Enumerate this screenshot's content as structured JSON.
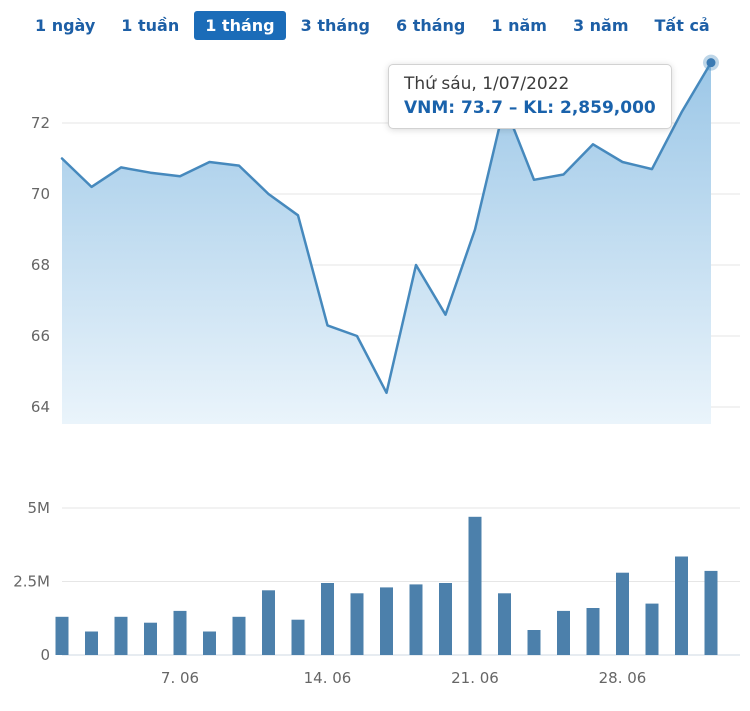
{
  "tabs": {
    "items": [
      {
        "label": "1 ngày",
        "active": false
      },
      {
        "label": "1 tuần",
        "active": false
      },
      {
        "label": "1 tháng",
        "active": true
      },
      {
        "label": "3 tháng",
        "active": false
      },
      {
        "label": "6 tháng",
        "active": false
      },
      {
        "label": "1 năm",
        "active": false
      },
      {
        "label": "3 năm",
        "active": false
      },
      {
        "label": "Tất cả",
        "active": false
      }
    ]
  },
  "tooltip": {
    "date": "Thứ sáu, 1/07/2022",
    "value": "VNM: 73.7 – KL: 2,859,000"
  },
  "colors": {
    "accent_blue": "#1d5fa6",
    "tab_active_bg": "#1b6cb8",
    "line": "#4689bd",
    "marker": "#3a7ab3",
    "area_top": "#9cc7e7",
    "area_bottom": "#eaf4fb",
    "bars": "#4c80ab",
    "grid": "#e6e6e6",
    "axis_text": "#666666",
    "baseline": "#cfd8e3"
  },
  "chart_data": [
    {
      "type": "area",
      "series": [
        {
          "name": "VNM",
          "values": [
            71.0,
            70.2,
            70.75,
            70.6,
            70.5,
            70.9,
            70.8,
            70.0,
            69.4,
            66.3,
            66.0,
            64.4,
            68.0,
            66.6,
            69.0,
            72.5,
            70.4,
            70.55,
            71.4,
            70.9,
            70.7,
            72.3,
            73.7
          ]
        }
      ],
      "last_point": {
        "label": "1/07/2022",
        "value": 73.7
      },
      "ylim": [
        63.4,
        74.2
      ],
      "yticks": [
        64,
        66,
        68,
        70,
        72
      ],
      "xticks": [
        {
          "index": 4,
          "label": "7. 06"
        },
        {
          "index": 9,
          "label": "14. 06"
        },
        {
          "index": 14,
          "label": "21. 06"
        },
        {
          "index": 19,
          "label": "28. 06"
        }
      ],
      "grid": true,
      "legend": "none"
    },
    {
      "type": "bar",
      "values_unit": "millions",
      "series": [
        {
          "name": "KL",
          "values": [
            1.3,
            0.8,
            1.3,
            1.1,
            1.5,
            0.8,
            1.3,
            2.2,
            1.2,
            2.45,
            2.1,
            2.3,
            2.4,
            2.45,
            4.7,
            2.1,
            0.85,
            1.5,
            1.6,
            2.8,
            1.75,
            3.35,
            2.859
          ]
        }
      ],
      "last_point": {
        "label": "1/07/2022",
        "value": 2859000
      },
      "ylim": [
        0,
        5.3
      ],
      "yticks": [
        {
          "value": 0,
          "label": "0"
        },
        {
          "value": 2.5,
          "label": "2.5M"
        },
        {
          "value": 5,
          "label": "5M"
        }
      ],
      "grid": true,
      "legend": "none"
    }
  ]
}
